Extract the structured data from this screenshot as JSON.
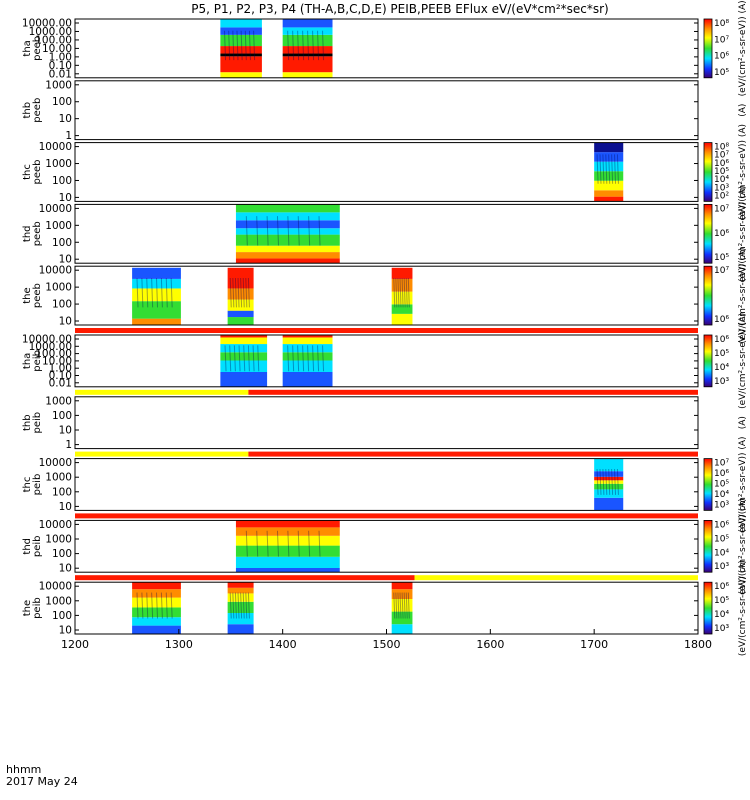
{
  "chart_data": {
    "type": "heatmap",
    "title": "P5, P1, P2, P3, P4 (TH-A,B,C,D,E) PEIB,PEEB EFlux eV/(eV*cm²*sec*sr)",
    "x_axis": {
      "range": [
        1200,
        1800
      ],
      "ticks": [
        "1200",
        "1300",
        "1400",
        "1500",
        "1600",
        "1700",
        "1800"
      ],
      "label_line1": "hhmm",
      "label_line2": "2017 May 24"
    },
    "colorbar_units": "(eV/(cm²-s-sr-eV))",
    "colors": {
      "red": "#ff1a00",
      "orange": "#ff8c00",
      "yellow": "#ffff00",
      "green": "#33dd33",
      "cyan": "#00e0ff",
      "blue": "#1a55ff",
      "darkblue": "#0a1090",
      "black": "#000000"
    },
    "panels": [
      {
        "id": "tha-peeb",
        "label": [
          "tha",
          "peeb"
        ],
        "ticks": [
          "10000.00",
          "1000.00",
          "100.00",
          "10.00",
          "1.00",
          "0.10",
          "0.01"
        ],
        "log_range": [
          -2,
          4.3
        ],
        "cbar_ticks": [
          "10⁸",
          "10⁷",
          "10⁶",
          "10⁵"
        ],
        "cbar_label": "(eV/(cm²-s-sr-eV)) (A)",
        "blocks": [
          {
            "t": [
              1340,
              1380
            ],
            "layers": [
              [
                "yellow",
                -2,
                -1.4
              ],
              [
                "red",
                -1.4,
                0.3
              ],
              [
                "black",
                0.3,
                0.6
              ],
              [
                "red",
                0.6,
                1.4
              ],
              [
                "green",
                1.4,
                2.6
              ],
              [
                "blue",
                2.6,
                3.4
              ],
              [
                "cyan",
                3.4,
                4.3
              ]
            ]
          },
          {
            "t": [
              1400,
              1448
            ],
            "layers": [
              [
                "yellow",
                -2,
                -1.4
              ],
              [
                "red",
                -1.4,
                0.3
              ],
              [
                "black",
                0.3,
                0.6
              ],
              [
                "red",
                0.6,
                1.4
              ],
              [
                "green",
                1.4,
                2.6
              ],
              [
                "cyan",
                2.6,
                3.4
              ],
              [
                "blue",
                3.4,
                4.3
              ]
            ]
          }
        ]
      },
      {
        "id": "thb-peeb",
        "label": [
          "thb",
          "peeb"
        ],
        "ticks": [
          "1000",
          "100",
          "10",
          "1"
        ],
        "log_range": [
          0,
          3.2
        ],
        "cbar_ticks": [],
        "cbar_label": "(A)",
        "blocks": []
      },
      {
        "id": "thc-peeb",
        "label": [
          "thc",
          "peeb"
        ],
        "ticks": [
          "10000",
          "1000",
          "100",
          "10"
        ],
        "log_range": [
          0.7,
          4.4
        ],
        "cbar_ticks": [
          "10⁸",
          "10⁷",
          "10⁶",
          "10⁵",
          "10⁴",
          "10³",
          "10²"
        ],
        "cbar_label": "(eV/(cm²-s-sr-eV)) (A)",
        "blocks": [
          {
            "t": [
              1700,
              1728
            ],
            "layers": [
              [
                "red",
                0.7,
                1.0
              ],
              [
                "orange",
                1.0,
                1.4
              ],
              [
                "yellow",
                1.4,
                2.0
              ],
              [
                "green",
                2.0,
                2.6
              ],
              [
                "cyan",
                2.6,
                3.2
              ],
              [
                "blue",
                3.2,
                3.8
              ],
              [
                "darkblue",
                3.8,
                4.4
              ]
            ]
          }
        ]
      },
      {
        "id": "thd-peeb",
        "label": [
          "thd",
          "peeb"
        ],
        "ticks": [
          "10000",
          "1000",
          "100",
          "10"
        ],
        "log_range": [
          0.7,
          4.4
        ],
        "cbar_ticks": [
          "10⁷",
          "10⁶",
          "10⁵"
        ],
        "cbar_label": "(eV/(cm²-s-sr-eV)) (A)",
        "blocks": [
          {
            "t": [
              1355,
              1455
            ],
            "layers": [
              [
                "red",
                0.7,
                1.0
              ],
              [
                "orange",
                1.0,
                1.4
              ],
              [
                "yellow",
                1.4,
                1.8
              ],
              [
                "green",
                1.8,
                2.5
              ],
              [
                "cyan",
                2.5,
                2.9
              ],
              [
                "blue",
                2.9,
                3.4
              ],
              [
                "cyan",
                3.4,
                3.9
              ],
              [
                "green",
                3.9,
                4.4
              ]
            ]
          }
        ]
      },
      {
        "id": "the-peeb",
        "label": [
          "the",
          "peeb"
        ],
        "ticks": [
          "10000",
          "1000",
          "100",
          "10"
        ],
        "log_range": [
          0.7,
          4.4
        ],
        "cbar_ticks": [
          "10⁷",
          "10⁶"
        ],
        "cbar_label": "(eV/(cm²-s-sr-eV)) (A)",
        "blocks": [
          {
            "t": [
              1255,
              1302
            ],
            "layers": [
              [
                "orange",
                0.7,
                1.1
              ],
              [
                "green",
                1.1,
                2.2
              ],
              [
                "yellow",
                2.2,
                3.0
              ],
              [
                "cyan",
                3.0,
                3.6
              ],
              [
                "blue",
                3.6,
                4.3
              ]
            ]
          },
          {
            "t": [
              1347,
              1372
            ],
            "layers": [
              [
                "green",
                0.7,
                1.2
              ],
              [
                "blue",
                1.2,
                1.6
              ],
              [
                "yellow",
                1.6,
                2.3
              ],
              [
                "orange",
                2.3,
                3.0
              ],
              [
                "red",
                3.0,
                4.3
              ]
            ]
          },
          {
            "t": [
              1505,
              1525
            ],
            "layers": [
              [
                "yellow",
                0.7,
                1.4
              ],
              [
                "green",
                1.4,
                2.0
              ],
              [
                "yellow",
                2.0,
                2.8
              ],
              [
                "orange",
                2.8,
                3.6
              ],
              [
                "red",
                3.6,
                4.3
              ]
            ]
          }
        ]
      },
      {
        "id": "tha-peib",
        "label": [
          "tha",
          "peib"
        ],
        "ticks": [
          "10000.00",
          "1000.00",
          "100.00",
          "10.00",
          "1.00",
          "0.10",
          "0.01"
        ],
        "log_range": [
          -2,
          4.3
        ],
        "cbar_ticks": [
          "10⁶",
          "10⁵",
          "10⁴",
          "10³"
        ],
        "cbar_label": "(eV/(cm²-s-sr-eV)) (A)",
        "bar": [
          [
            "red",
            1200,
            1800
          ]
        ],
        "blocks": [
          {
            "t": [
              1340,
              1385
            ],
            "layers": [
              [
                "blue",
                -2,
                -0.2
              ],
              [
                "cyan",
                -0.2,
                1.2
              ],
              [
                "green",
                1.2,
                2.2
              ],
              [
                "cyan",
                2.2,
                3.2
              ],
              [
                "yellow",
                3.2,
                4.0
              ],
              [
                "red",
                4.0,
                4.3
              ]
            ]
          },
          {
            "t": [
              1400,
              1448
            ],
            "layers": [
              [
                "blue",
                -2,
                -0.2
              ],
              [
                "cyan",
                -0.2,
                1.2
              ],
              [
                "green",
                1.2,
                2.2
              ],
              [
                "cyan",
                2.2,
                3.2
              ],
              [
                "yellow",
                3.2,
                4.0
              ],
              [
                "red",
                4.0,
                4.3
              ]
            ]
          }
        ]
      },
      {
        "id": "thb-peib",
        "label": [
          "thb",
          "peib"
        ],
        "ticks": [
          "1000",
          "100",
          "10",
          "1"
        ],
        "log_range": [
          0,
          3.2
        ],
        "cbar_ticks": [],
        "cbar_label": "(A)",
        "bar": [
          [
            "yellow",
            1200,
            1367
          ],
          [
            "red",
            1367,
            1800
          ]
        ],
        "blocks": []
      },
      {
        "id": "thc-peib",
        "label": [
          "thc",
          "peib"
        ],
        "ticks": [
          "10000",
          "1000",
          "100",
          "10"
        ],
        "log_range": [
          0.7,
          4.4
        ],
        "cbar_ticks": [
          "10⁷",
          "10⁶",
          "10⁵",
          "10⁴",
          "10³"
        ],
        "cbar_label": "(eV/(cm²-s-sr-eV)) (A)",
        "bar": [
          [
            "yellow",
            1200,
            1367
          ],
          [
            "red",
            1367,
            1800
          ]
        ],
        "blocks": [
          {
            "t": [
              1700,
              1728
            ],
            "layers": [
              [
                "blue",
                0.7,
                1.6
              ],
              [
                "cyan",
                1.6,
                2.2
              ],
              [
                "green",
                2.2,
                2.6
              ],
              [
                "yellow",
                2.6,
                2.85
              ],
              [
                "red",
                2.85,
                3.1
              ],
              [
                "blue",
                3.1,
                3.5
              ],
              [
                "cyan",
                3.5,
                4.4
              ]
            ]
          }
        ]
      },
      {
        "id": "thd-peib",
        "label": [
          "thd",
          "peib"
        ],
        "ticks": [
          "10000",
          "1000",
          "100",
          "10"
        ],
        "log_range": [
          0.7,
          4.4
        ],
        "cbar_ticks": [
          "10⁶",
          "10⁵",
          "10⁴",
          "10³"
        ],
        "cbar_label": "(eV/(cm²-s-sr-eV)) (A)",
        "bar": [
          [
            "red",
            1200,
            1800
          ]
        ],
        "blocks": [
          {
            "t": [
              1355,
              1455
            ],
            "layers": [
              [
                "blue",
                0.7,
                1.0
              ],
              [
                "cyan",
                1.0,
                1.8
              ],
              [
                "green",
                1.8,
                2.6
              ],
              [
                "yellow",
                2.6,
                3.3
              ],
              [
                "orange",
                3.3,
                3.9
              ],
              [
                "red",
                3.9,
                4.4
              ]
            ]
          }
        ]
      },
      {
        "id": "the-peib",
        "label": [
          "the",
          "peib"
        ],
        "ticks": [
          "10000",
          "1000",
          "100",
          "10"
        ],
        "log_range": [
          0.7,
          4.4
        ],
        "cbar_ticks": [
          "10⁶",
          "10⁵",
          "10⁴",
          "10³"
        ],
        "cbar_label": "(eV/(cm²-s-sr-eV)) (A)",
        "bar": [
          [
            "red",
            1200,
            1527
          ],
          [
            "yellow",
            1527,
            1800
          ]
        ],
        "blocks": [
          {
            "t": [
              1255,
              1302
            ],
            "layers": [
              [
                "blue",
                0.7,
                1.3
              ],
              [
                "cyan",
                1.3,
                1.9
              ],
              [
                "green",
                1.9,
                2.6
              ],
              [
                "yellow",
                2.6,
                3.3
              ],
              [
                "orange",
                3.3,
                3.9
              ],
              [
                "red",
                3.9,
                4.4
              ]
            ]
          },
          {
            "t": [
              1347,
              1372
            ],
            "layers": [
              [
                "blue",
                0.7,
                1.4
              ],
              [
                "cyan",
                1.4,
                2.2
              ],
              [
                "green",
                2.2,
                3.0
              ],
              [
                "yellow",
                3.0,
                3.6
              ],
              [
                "orange",
                3.6,
                4.0
              ],
              [
                "red",
                4.0,
                4.4
              ]
            ]
          },
          {
            "t": [
              1505,
              1525
            ],
            "layers": [
              [
                "cyan",
                0.7,
                1.4
              ],
              [
                "green",
                1.4,
                2.3
              ],
              [
                "yellow",
                2.3,
                3.2
              ],
              [
                "orange",
                3.2,
                3.9
              ],
              [
                "red",
                3.9,
                4.4
              ]
            ]
          }
        ]
      }
    ]
  }
}
